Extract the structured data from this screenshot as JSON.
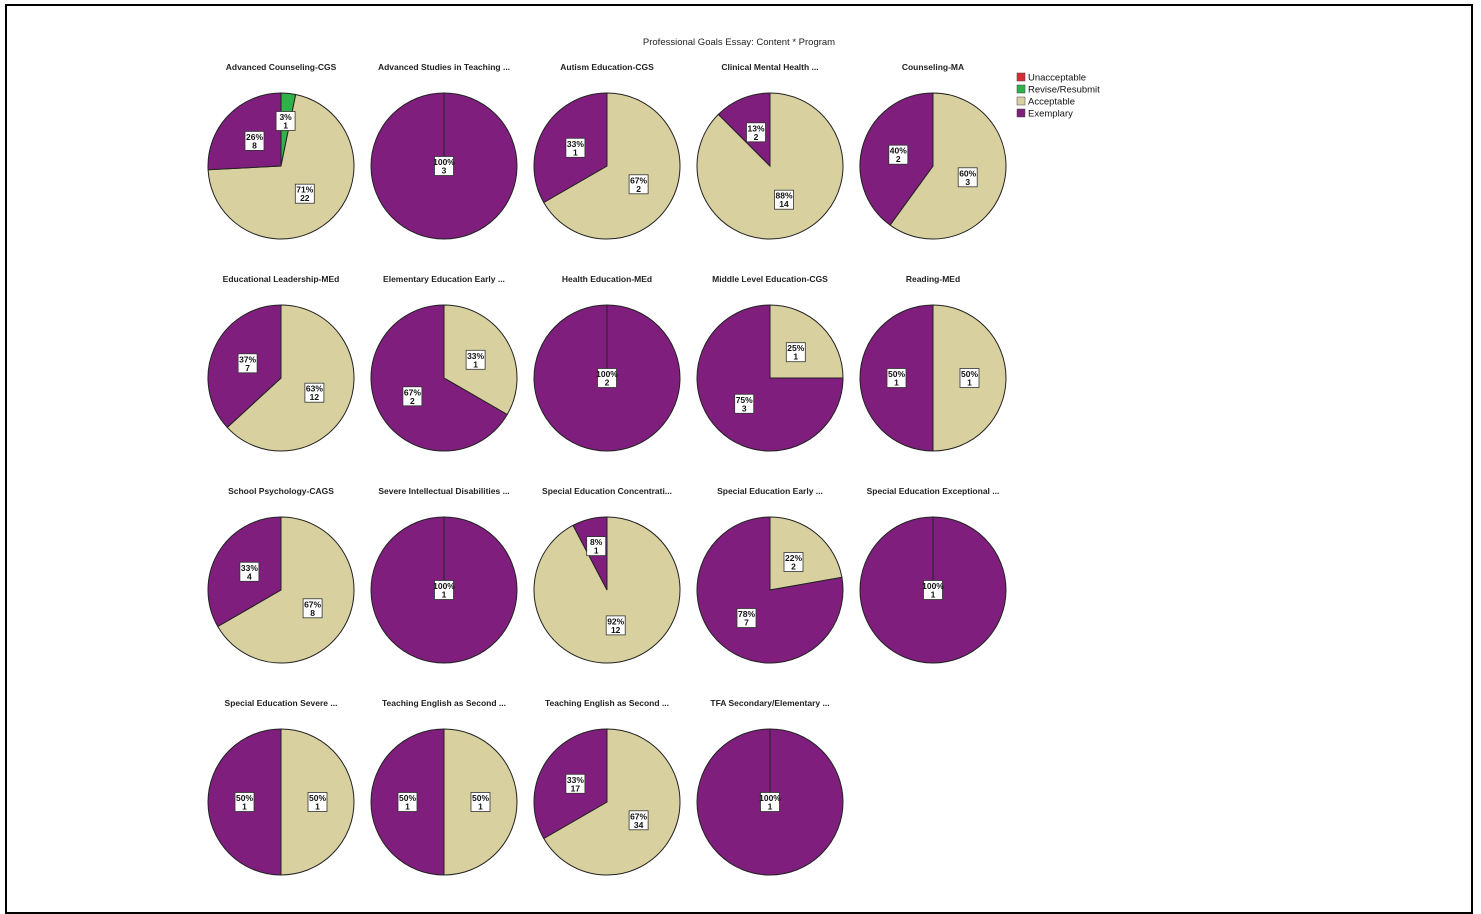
{
  "chart_data": {
    "type": "pie",
    "title": "Professional Goals Essay: Content * Program",
    "legend": {
      "placement": "top-right",
      "entries": [
        {
          "name": "Unacceptable",
          "color": "#d62d37"
        },
        {
          "name": "Revise/Resubmit",
          "color": "#2fb24a"
        },
        {
          "name": "Acceptable",
          "color": "#d8d19f"
        },
        {
          "name": "Exemplary",
          "color": "#801e7e"
        }
      ]
    },
    "pies": [
      {
        "title": "Advanced Counseling-CGS",
        "slices": [
          {
            "category": "Revise/Resubmit",
            "pct": "3%",
            "count": 1
          },
          {
            "category": "Acceptable",
            "pct": "71%",
            "count": 22
          },
          {
            "category": "Exemplary",
            "pct": "26%",
            "count": 8
          }
        ]
      },
      {
        "title": "Advanced Studies in Teaching ...",
        "slices": [
          {
            "category": "Exemplary",
            "pct": "100%",
            "count": 3
          }
        ]
      },
      {
        "title": "Autism Education-CGS",
        "slices": [
          {
            "category": "Acceptable",
            "pct": "67%",
            "count": 2
          },
          {
            "category": "Exemplary",
            "pct": "33%",
            "count": 1
          }
        ]
      },
      {
        "title": "Clinical Mental Health ...",
        "slices": [
          {
            "category": "Acceptable",
            "pct": "88%",
            "count": 14
          },
          {
            "category": "Exemplary",
            "pct": "13%",
            "count": 2
          }
        ]
      },
      {
        "title": "Counseling-MA",
        "slices": [
          {
            "category": "Acceptable",
            "pct": "60%",
            "count": 3
          },
          {
            "category": "Exemplary",
            "pct": "40%",
            "count": 2
          }
        ]
      },
      {
        "title": "Educational Leadership-MEd",
        "slices": [
          {
            "category": "Acceptable",
            "pct": "63%",
            "count": 12
          },
          {
            "category": "Exemplary",
            "pct": "37%",
            "count": 7
          }
        ]
      },
      {
        "title": "Elementary Education Early ...",
        "slices": [
          {
            "category": "Acceptable",
            "pct": "33%",
            "count": 1
          },
          {
            "category": "Exemplary",
            "pct": "67%",
            "count": 2
          }
        ]
      },
      {
        "title": "Health Education-MEd",
        "slices": [
          {
            "category": "Exemplary",
            "pct": "100%",
            "count": 2
          }
        ]
      },
      {
        "title": "Middle Level Education-CGS",
        "slices": [
          {
            "category": "Acceptable",
            "pct": "25%",
            "count": 1
          },
          {
            "category": "Exemplary",
            "pct": "75%",
            "count": 3
          }
        ]
      },
      {
        "title": "Reading-MEd",
        "slices": [
          {
            "category": "Acceptable",
            "pct": "50%",
            "count": 1
          },
          {
            "category": "Exemplary",
            "pct": "50%",
            "count": 1
          }
        ]
      },
      {
        "title": "School Psychology-CAGS",
        "slices": [
          {
            "category": "Acceptable",
            "pct": "67%",
            "count": 8
          },
          {
            "category": "Exemplary",
            "pct": "33%",
            "count": 4
          }
        ]
      },
      {
        "title": "Severe Intellectual Disabilities ...",
        "slices": [
          {
            "category": "Exemplary",
            "pct": "100%",
            "count": 1
          }
        ]
      },
      {
        "title": "Special Education Concentrati...",
        "slices": [
          {
            "category": "Acceptable",
            "pct": "92%",
            "count": 12
          },
          {
            "category": "Exemplary",
            "pct": "8%",
            "count": 1
          }
        ]
      },
      {
        "title": "Special Education Early ...",
        "slices": [
          {
            "category": "Acceptable",
            "pct": "22%",
            "count": 2
          },
          {
            "category": "Exemplary",
            "pct": "78%",
            "count": 7
          }
        ]
      },
      {
        "title": "Special Education Exceptional ...",
        "slices": [
          {
            "category": "Exemplary",
            "pct": "100%",
            "count": 1
          }
        ]
      },
      {
        "title": "Special Education Severe ...",
        "slices": [
          {
            "category": "Acceptable",
            "pct": "50%",
            "count": 1
          },
          {
            "category": "Exemplary",
            "pct": "50%",
            "count": 1
          }
        ]
      },
      {
        "title": "Teaching English as Second ...",
        "slices": [
          {
            "category": "Acceptable",
            "pct": "50%",
            "count": 1
          },
          {
            "category": "Exemplary",
            "pct": "50%",
            "count": 1
          }
        ]
      },
      {
        "title": "Teaching English as Second ...",
        "slices": [
          {
            "category": "Acceptable",
            "pct": "67%",
            "count": 34
          },
          {
            "category": "Exemplary",
            "pct": "33%",
            "count": 17
          }
        ]
      },
      {
        "title": "TFA Secondary/Elementary ...",
        "slices": [
          {
            "category": "Exemplary",
            "pct": "100%",
            "count": 1
          }
        ]
      }
    ]
  }
}
